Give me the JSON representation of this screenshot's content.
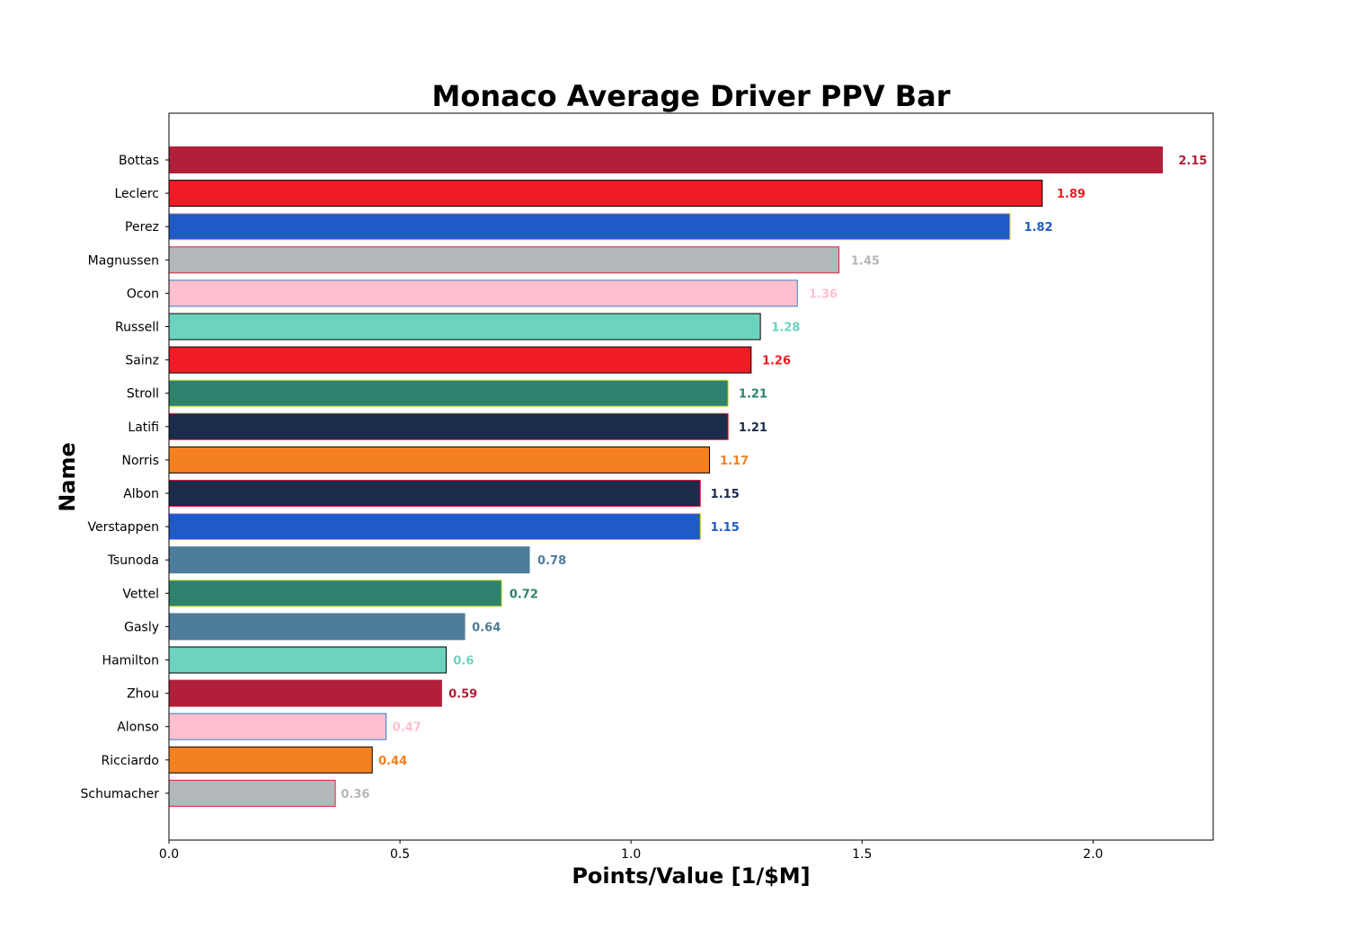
{
  "chart_data": {
    "type": "bar",
    "orientation": "horizontal",
    "title": "Monaco Average Driver PPV Bar",
    "xlabel": "Points/Value [1/$M]",
    "ylabel": "Name",
    "xlim": [
      0,
      2.26
    ],
    "xticks": [
      0.0,
      0.5,
      1.0,
      1.5,
      2.0
    ],
    "xtick_labels": [
      "0.0",
      "0.5",
      "1.0",
      "1.5",
      "2.0"
    ],
    "grid": false,
    "categories": [
      "Bottas",
      "Leclerc",
      "Perez",
      "Magnussen",
      "Ocon",
      "Russell",
      "Sainz",
      "Stroll",
      "Latifi",
      "Norris",
      "Albon",
      "Verstappen",
      "Tsunoda",
      "Vettel",
      "Gasly",
      "Hamilton",
      "Zhou",
      "Alonso",
      "Ricciardo",
      "Schumacher"
    ],
    "values": [
      2.15,
      1.89,
      1.82,
      1.45,
      1.36,
      1.28,
      1.26,
      1.21,
      1.21,
      1.17,
      1.15,
      1.15,
      0.78,
      0.72,
      0.64,
      0.6,
      0.59,
      0.47,
      0.44,
      0.36
    ],
    "value_labels": [
      "2.15",
      "1.89",
      "1.82",
      "1.45",
      "1.36",
      "1.28",
      "1.26",
      "1.21",
      "1.21",
      "1.17",
      "1.15",
      "1.15",
      "0.78",
      "0.72",
      "0.64",
      "0.6",
      "0.59",
      "0.47",
      "0.44",
      "0.36"
    ],
    "colors": [
      "#B11F38",
      "#EF1C25",
      "#1F5BC6",
      "#B5B8BB",
      "#FFBFCE",
      "#6CD3BF",
      "#EF1C25",
      "#2D826D",
      "#1B2B4A",
      "#F58020",
      "#1B2B4A",
      "#1F5BC6",
      "#4E7C9B",
      "#2D826D",
      "#4E7C9B",
      "#6CD3BF",
      "#B11F38",
      "#FFBFCE",
      "#F58020",
      "#B5B8BB"
    ],
    "edge_colors": [
      "#B11F38",
      "#000000",
      "#D4C21E",
      "#D4213E",
      "#2F80D0",
      "#000000",
      "#000000",
      "#C8DC2B",
      "#DC1F3C",
      "#000000",
      "#E0203C",
      "#D4C21E",
      "#4E7C9B",
      "#C8DC2B",
      "#4E7C9B",
      "#000000",
      "#B11F38",
      "#2F80D0",
      "#000000",
      "#D4213E"
    ]
  }
}
